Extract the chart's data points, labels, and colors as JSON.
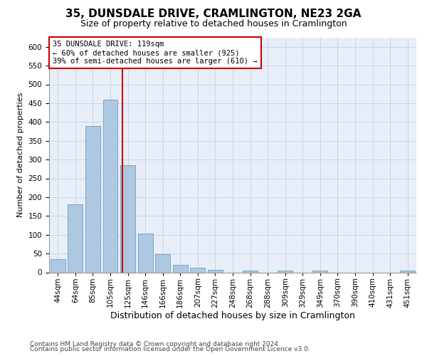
{
  "title": "35, DUNSDALE DRIVE, CRAMLINGTON, NE23 2GA",
  "subtitle": "Size of property relative to detached houses in Cramlington",
  "xlabel": "Distribution of detached houses by size in Cramlington",
  "ylabel": "Number of detached properties",
  "footnote1": "Contains HM Land Registry data © Crown copyright and database right 2024.",
  "footnote2": "Contains public sector information licensed under the Open Government Licence v3.0.",
  "bin_labels": [
    "44sqm",
    "64sqm",
    "85sqm",
    "105sqm",
    "125sqm",
    "146sqm",
    "166sqm",
    "186sqm",
    "207sqm",
    "227sqm",
    "248sqm",
    "268sqm",
    "288sqm",
    "309sqm",
    "329sqm",
    "349sqm",
    "370sqm",
    "390sqm",
    "410sqm",
    "431sqm",
    "451sqm"
  ],
  "bar_values": [
    35,
    180,
    390,
    460,
    285,
    103,
    48,
    19,
    12,
    7,
    0,
    5,
    0,
    4,
    0,
    4,
    0,
    0,
    0,
    0,
    4
  ],
  "bar_color": "#adc8e0",
  "bar_edgecolor": "#6a9fc0",
  "property_bin_index": 3,
  "property_line_label": "35 DUNSDALE DRIVE: 119sqm",
  "annotation_line1": "← 60% of detached houses are smaller (925)",
  "annotation_line2": "39% of semi-detached houses are larger (610) →",
  "annotation_box_facecolor": "#ffffff",
  "annotation_box_edgecolor": "#cc0000",
  "vline_color": "#cc0000",
  "ylim": [
    0,
    625
  ],
  "yticks": [
    0,
    50,
    100,
    150,
    200,
    250,
    300,
    350,
    400,
    450,
    500,
    550,
    600
  ],
  "title_fontsize": 11,
  "subtitle_fontsize": 9,
  "xlabel_fontsize": 9,
  "ylabel_fontsize": 8,
  "tick_fontsize": 7.5,
  "annotation_fontsize": 7.5,
  "footnote_fontsize": 6.5
}
